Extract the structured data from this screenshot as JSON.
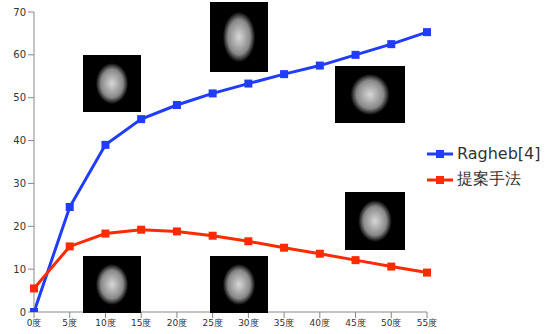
{
  "chart_data": {
    "type": "line",
    "categories": [
      "0度",
      "5度",
      "10度",
      "15度",
      "20度",
      "25度",
      "30度",
      "35度",
      "40度",
      "45度",
      "50度",
      "55度"
    ],
    "series": [
      {
        "name": "Ragheb[4]",
        "color": "#1f3cff",
        "marker": "square",
        "values": [
          0,
          24.5,
          39,
          45,
          48.3,
          51,
          53.3,
          55.5,
          57.5,
          60,
          62.5,
          65.3
        ]
      },
      {
        "name": "提案手法",
        "color": "#ff2a00",
        "marker": "square",
        "values": [
          5.5,
          15.3,
          18.3,
          19.2,
          18.8,
          17.8,
          16.5,
          15,
          13.6,
          12.1,
          10.6,
          9.2
        ]
      }
    ],
    "ylim": [
      0,
      70
    ],
    "yticks": [
      0,
      10,
      20,
      30,
      40,
      50,
      60,
      70
    ],
    "grid": false,
    "legend": "right"
  }
}
